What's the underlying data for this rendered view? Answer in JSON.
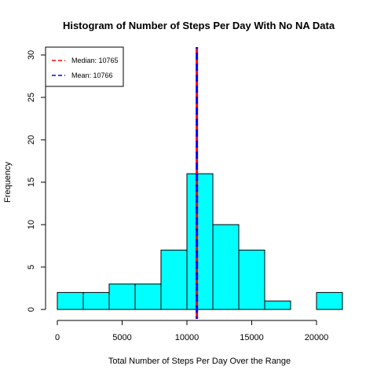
{
  "chart_data": {
    "type": "histogram",
    "title": "Histogram of Number of Steps Per Day With No NA Data",
    "xlabel": "Total Number of Steps Per Day Over the Range",
    "ylabel": "Frequency",
    "xlim": [
      0,
      22000
    ],
    "ylim": [
      0,
      30
    ],
    "x_ticks": [
      0,
      5000,
      10000,
      15000,
      20000
    ],
    "y_ticks": [
      0,
      5,
      10,
      15,
      20,
      25,
      30
    ],
    "bin_edges": [
      0,
      2000,
      4000,
      6000,
      8000,
      10000,
      12000,
      14000,
      16000,
      18000,
      20000,
      22000
    ],
    "counts": [
      2,
      2,
      3,
      3,
      7,
      16,
      10,
      7,
      1,
      0,
      2
    ],
    "bar_color": "#00FFFF",
    "grid": false,
    "vlines": [
      {
        "name": "Median",
        "value": 10765,
        "color": "#FF0000",
        "style": "dashed"
      },
      {
        "name": "Mean",
        "value": 10766,
        "color": "#0000FF",
        "style": "dashed"
      }
    ],
    "legend": {
      "position": "top-left",
      "entries": [
        {
          "label": "Median:  10765",
          "color": "#FF0000"
        },
        {
          "label": "Mean:  10766",
          "color": "#0000FF"
        }
      ]
    }
  }
}
